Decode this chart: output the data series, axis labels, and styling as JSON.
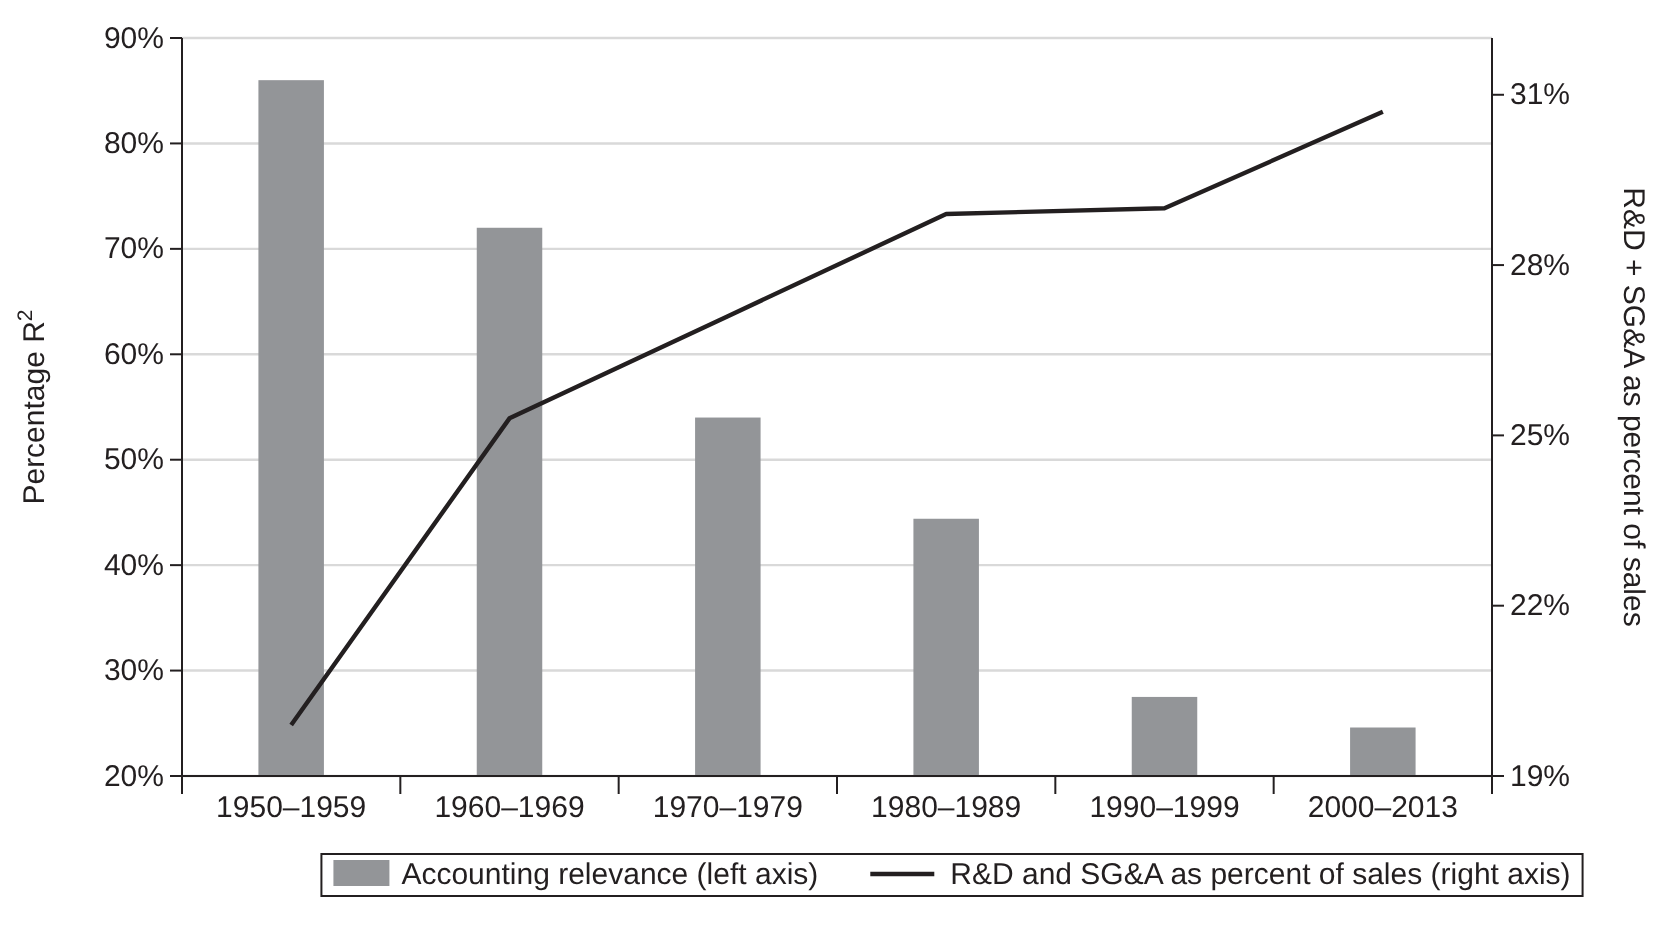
{
  "chart_data": {
    "type": "bar",
    "ylabel": "Percentage R$^{2}$",
    "y2label": "R&D + SG&A as percent of sales",
    "categories": [
      "1950–1959",
      "1960–1969",
      "1970–1979",
      "1980–1989",
      "1990–1999",
      "2000–2013"
    ],
    "series": [
      {
        "name": "Accounting relevance (left axis)",
        "color": "#939598",
        "values": [
          86,
          72,
          54,
          44.4,
          27.5,
          24.6
        ]
      },
      {
        "name": "R&D and SG&A as percent of sales (right axis)",
        "type": "line",
        "axis": "y2",
        "color": "#231f20",
        "values": [
          19.9,
          25.3,
          27.1,
          28.9,
          29.0,
          30.7
        ]
      }
    ],
    "ylim": [
      20,
      90
    ],
    "yticks": [
      {
        "value": 20,
        "label": "20%"
      },
      {
        "value": 30,
        "label": "30%"
      },
      {
        "value": 40,
        "label": "40%"
      },
      {
        "value": 50,
        "label": "50%"
      },
      {
        "value": 60,
        "label": "60%"
      },
      {
        "value": 70,
        "label": "70%"
      },
      {
        "value": 80,
        "label": "80%"
      },
      {
        "value": 90,
        "label": "90%"
      }
    ],
    "y2lim": [
      19,
      32
    ],
    "y2ticks": [
      {
        "value": 19,
        "label": "19%"
      },
      {
        "value": 22,
        "label": "22%"
      },
      {
        "value": 25,
        "label": "25%"
      },
      {
        "value": 28,
        "label": "28%"
      },
      {
        "value": 31,
        "label": "31%"
      }
    ],
    "grid": "y",
    "legend": "bottom",
    "marker": "none",
    "line_style": "solid"
  }
}
